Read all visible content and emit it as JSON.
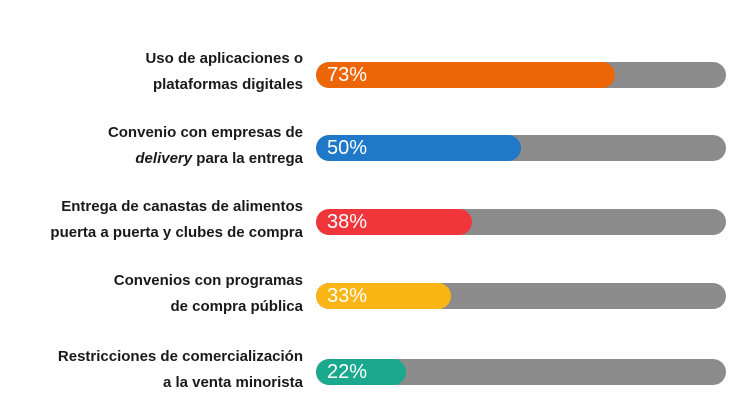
{
  "chart_data": {
    "type": "bar",
    "orientation": "horizontal",
    "categories": [
      {
        "line1": "Uso de aplicaciones o",
        "line2": "plataformas digitales"
      },
      {
        "line1": "Convenio con empresas de",
        "line2_em": "delivery",
        "line2": " para la entrega"
      },
      {
        "line1": "Entrega de canastas de alimentos",
        "line2": "puerta a puerta y clubes de compra"
      },
      {
        "line1": "Convenios con programas",
        "line2": "de compra pública"
      },
      {
        "line1": "Restricciones de comercialización",
        "line2": "a la venta minorista"
      }
    ],
    "values": [
      73,
      50,
      38,
      33,
      22
    ],
    "value_labels": [
      "73%",
      "50%",
      "38%",
      "33%",
      "22%"
    ],
    "colors": [
      "#ec6608",
      "#1f78c8",
      "#f0363b",
      "#fbb514",
      "#1aa98f"
    ],
    "track_color": "#8c8c8c",
    "xlim": [
      0,
      100
    ]
  }
}
